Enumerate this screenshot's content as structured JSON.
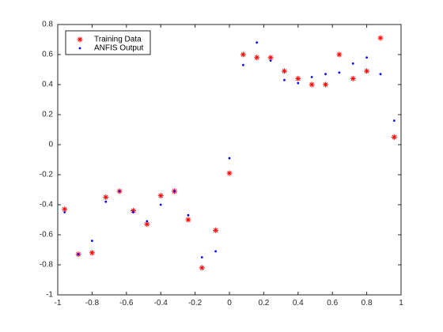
{
  "colors": {
    "training": "#ff0000",
    "anfis": "#0000ff",
    "axis": "#262626",
    "background": "#ffffff"
  },
  "chart_data": {
    "type": "scatter",
    "title": "",
    "xlabel": "",
    "ylabel": "",
    "xlim": [
      -1,
      1
    ],
    "ylim": [
      -1,
      0.8
    ],
    "xticks": [
      -1,
      -0.8,
      -0.6,
      -0.4,
      -0.2,
      0,
      0.2,
      0.4,
      0.6,
      0.8,
      1
    ],
    "yticks": [
      -1,
      -0.8,
      -0.6,
      -0.4,
      -0.2,
      0,
      0.2,
      0.4,
      0.6,
      0.8
    ],
    "xtick_labels": [
      "-1",
      "-0.8",
      "-0.6",
      "-0.4",
      "-0.2",
      "0",
      "0.2",
      "0.4",
      "0.6",
      "0.8",
      "1"
    ],
    "ytick_labels": [
      "-1",
      "-0.8",
      "-0.6",
      "-0.4",
      "-0.2",
      "0",
      "0.2",
      "0.4",
      "0.6",
      "0.8"
    ],
    "grid": false,
    "legend": {
      "placement": "top-left",
      "box": true
    },
    "series": [
      {
        "name": "Training Data",
        "marker": "asterisk",
        "color": "#ff0000",
        "x": [
          -0.96,
          -0.88,
          -0.8,
          -0.72,
          -0.64,
          -0.56,
          -0.48,
          -0.4,
          -0.32,
          -0.24,
          -0.16,
          -0.08,
          0.0,
          0.08,
          0.16,
          0.24,
          0.32,
          0.4,
          0.48,
          0.56,
          0.64,
          0.72,
          0.8,
          0.88,
          0.96
        ],
        "y": [
          -0.43,
          -0.73,
          -0.72,
          -0.35,
          -0.31,
          -0.44,
          -0.53,
          -0.34,
          -0.31,
          -0.5,
          -0.82,
          -0.57,
          -0.19,
          0.6,
          0.58,
          0.58,
          0.49,
          0.44,
          0.4,
          0.4,
          0.6,
          0.44,
          0.49,
          0.71,
          0.05
        ]
      },
      {
        "name": "ANFIS Output",
        "marker": "dot",
        "color": "#0000ff",
        "x": [
          -0.96,
          -0.88,
          -0.8,
          -0.72,
          -0.64,
          -0.56,
          -0.48,
          -0.4,
          -0.32,
          -0.24,
          -0.16,
          -0.08,
          0.0,
          0.08,
          0.16,
          0.24,
          0.32,
          0.4,
          0.48,
          0.56,
          0.64,
          0.72,
          0.8,
          0.88,
          0.96
        ],
        "y": [
          -0.45,
          -0.73,
          -0.64,
          -0.38,
          -0.31,
          -0.45,
          -0.51,
          -0.4,
          -0.31,
          -0.47,
          -0.75,
          -0.71,
          -0.09,
          0.53,
          0.68,
          0.56,
          0.43,
          0.41,
          0.45,
          0.47,
          0.48,
          0.54,
          0.58,
          0.47,
          0.16
        ]
      }
    ]
  }
}
